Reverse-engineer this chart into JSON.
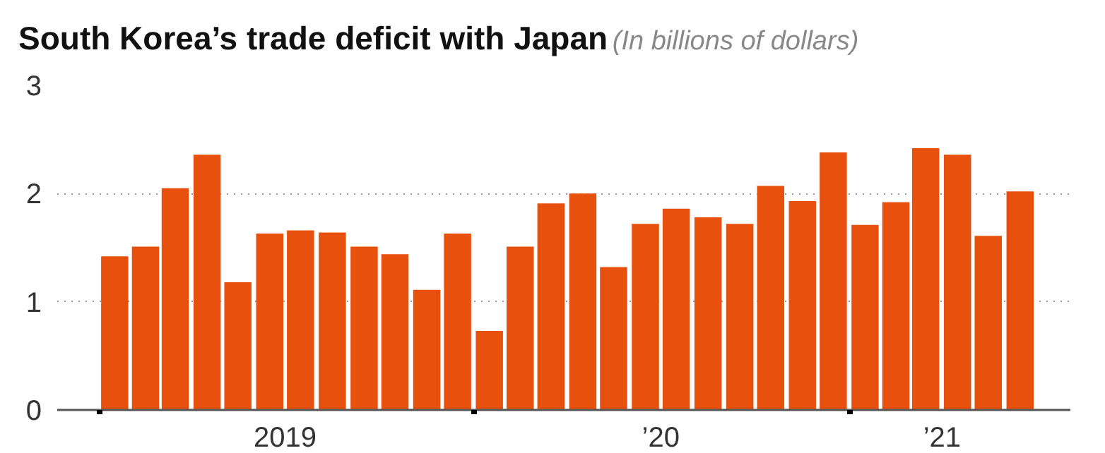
{
  "chart_data": {
    "type": "bar",
    "title": "South Korea’s trade deficit with Japan",
    "subtitle": "(In billions of dollars)",
    "x": [
      "2019-01-16",
      "2019-02-15",
      "2019-03-16",
      "2019-04-16",
      "2019-05-16",
      "2019-06-16",
      "2019-07-16",
      "2019-08-16",
      "2019-09-16",
      "2019-10-16",
      "2019-11-16",
      "2019-12-16",
      "2020-01-16",
      "2020-02-15",
      "2020-03-16",
      "2020-04-16",
      "2020-05-16",
      "2020-06-16",
      "2020-07-16",
      "2020-08-16",
      "2020-09-16",
      "2020-10-16",
      "2020-11-16",
      "2020-12-16",
      "2021-01-16",
      "2021-02-15",
      "2021-03-16",
      "2021-04-16",
      "2021-05-16",
      "2021-06-16"
    ],
    "values": [
      1.42,
      1.51,
      2.05,
      2.36,
      1.18,
      1.63,
      1.66,
      1.64,
      1.51,
      1.44,
      1.11,
      1.63,
      0.73,
      1.51,
      1.91,
      2.0,
      1.32,
      1.72,
      1.86,
      1.78,
      1.72,
      2.07,
      1.93,
      2.38,
      1.71,
      1.92,
      2.42,
      2.36,
      1.61,
      2.02
    ],
    "color": "#e8500e",
    "xlim": [
      "2018-11-21",
      "2021-08-04"
    ],
    "xticks": [
      {
        "value": "2019-01",
        "label": null
      },
      {
        "value": "2019-07",
        "label": "2019"
      },
      {
        "value": "2020-01",
        "label": null
      },
      {
        "value": "2020-07",
        "label": "’20"
      },
      {
        "value": "2021-01",
        "label": null
      },
      {
        "value": "2021-04",
        "label": "’21"
      }
    ],
    "ylim": [
      0,
      3
    ],
    "yticks": [
      0,
      1,
      2,
      3
    ],
    "grid": "y"
  }
}
